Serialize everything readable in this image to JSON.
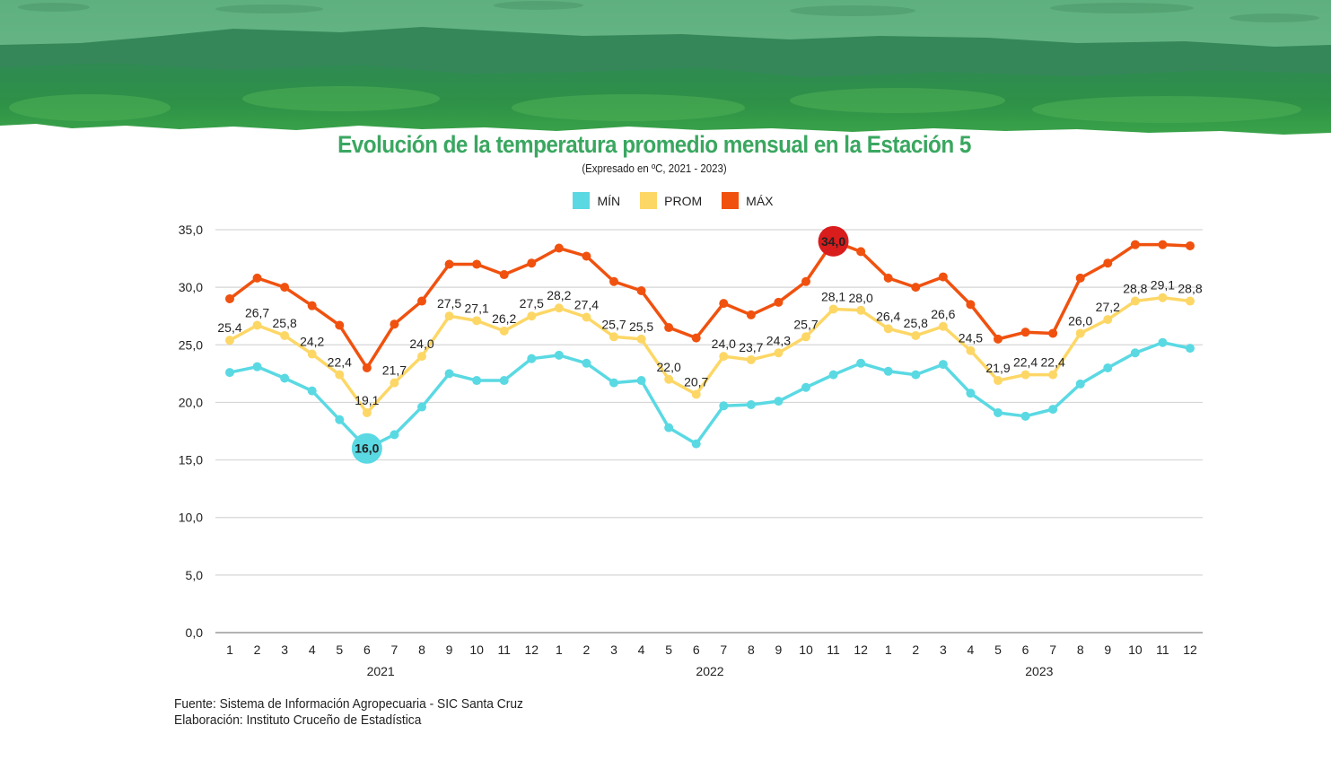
{
  "chart_data": {
    "type": "line",
    "title": "Evolución de la temperatura promedio mensual en la Estación 5",
    "subtitle": "(Expresado en ºC, 2021 - 2023)",
    "xlabel": "",
    "ylabel": "",
    "ylim": [
      0,
      35
    ],
    "yticks": [
      "0,0",
      "5,0",
      "10,0",
      "15,0",
      "20,0",
      "25,0",
      "30,0",
      "35,0"
    ],
    "ytick_values": [
      0,
      5,
      10,
      15,
      20,
      25,
      30,
      35
    ],
    "grid": true,
    "legend_position": "top-center",
    "categories": [
      "1",
      "2",
      "3",
      "4",
      "5",
      "6",
      "7",
      "8",
      "9",
      "10",
      "11",
      "12",
      "1",
      "2",
      "3",
      "4",
      "5",
      "6",
      "7",
      "8",
      "9",
      "10",
      "11",
      "12",
      "1",
      "2",
      "3",
      "4",
      "5",
      "6",
      "7",
      "8",
      "9",
      "10",
      "11",
      "12"
    ],
    "year_groups": [
      {
        "label": "2021",
        "start": 0,
        "end": 11
      },
      {
        "label": "2022",
        "start": 12,
        "end": 23
      },
      {
        "label": "2023",
        "start": 24,
        "end": 35
      }
    ],
    "series": [
      {
        "name": "MÍN",
        "color": "#5ad9e3",
        "values": [
          22.6,
          23.1,
          22.1,
          21.0,
          18.5,
          16.0,
          17.2,
          19.6,
          22.5,
          21.9,
          21.9,
          23.8,
          24.1,
          23.4,
          21.7,
          21.9,
          17.8,
          16.4,
          19.7,
          19.8,
          20.1,
          21.3,
          22.4,
          23.4,
          22.7,
          22.4,
          23.3,
          20.8,
          19.1,
          18.8,
          19.4,
          21.6,
          23.0,
          24.3,
          25.2,
          24.7
        ],
        "show_labels": false,
        "highlight": {
          "index": 5,
          "label": "16,0"
        }
      },
      {
        "name": "PROM",
        "color": "#fdd766",
        "values": [
          25.4,
          26.7,
          25.8,
          24.2,
          22.4,
          19.1,
          21.7,
          24.0,
          27.5,
          27.1,
          26.2,
          27.5,
          28.2,
          27.4,
          25.7,
          25.5,
          22.0,
          20.7,
          24.0,
          23.7,
          24.3,
          25.7,
          28.1,
          28.0,
          26.4,
          25.8,
          26.6,
          24.5,
          21.9,
          22.4,
          22.4,
          26.0,
          27.2,
          28.8,
          29.1,
          28.8
        ],
        "labels": [
          "25,4",
          "26,7",
          "25,8",
          "24,2",
          "22,4",
          "19,1",
          "21,7",
          "24,0",
          "27,5",
          "27,1",
          "26,2",
          "27,5",
          "28,2",
          "27,4",
          "25,7",
          "25,5",
          "22,0",
          "20,7",
          "24,0",
          "23,7",
          "24,3",
          "25,7",
          "28,1",
          "28,0",
          "26,4",
          "25,8",
          "26,6",
          "24,5",
          "21,9",
          "22,4",
          "22,4",
          "26,0",
          "27,2",
          "28,8",
          "29,1",
          "28,8"
        ],
        "show_labels": true
      },
      {
        "name": "MÁX",
        "color": "#f0510f",
        "values": [
          29.0,
          30.8,
          30.0,
          28.4,
          26.7,
          23.0,
          26.8,
          28.8,
          32.0,
          32.0,
          31.1,
          32.1,
          33.4,
          32.7,
          30.5,
          29.7,
          26.5,
          25.6,
          28.6,
          27.6,
          28.7,
          30.5,
          34.0,
          33.1,
          30.8,
          30.0,
          30.9,
          28.5,
          25.5,
          26.1,
          26.0,
          30.8,
          32.1,
          33.7,
          33.7,
          33.6
        ],
        "show_labels": false,
        "highlight": {
          "index": 22,
          "label": "34,0",
          "color": "#d91c1c"
        }
      }
    ]
  },
  "footer": {
    "source": "Fuente: Sistema de Información Agropecuaria - SIC Santa Cruz",
    "elaboration": "Elaboración: Instituto Cruceño de Estadística"
  }
}
